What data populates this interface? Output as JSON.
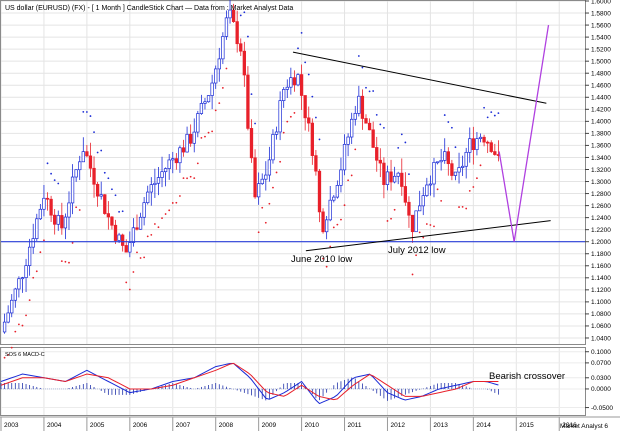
{
  "chart_data": [
    {
      "type": "candlestick",
      "title": "US dollar (EURUSD) (FX) -  [ 1 Month ] CandleStick Chart — Data from : Market Analyst Data",
      "watermark": "Market Analyst 6",
      "x_tick_labels": [
        "2003",
        "2004",
        "2005",
        "2006",
        "2007",
        "2008",
        "2009",
        "2010",
        "2011",
        "2012",
        "2013",
        "2014",
        "2015",
        "2016"
      ],
      "y_tick_labels": [
        "1.6000",
        "1.5800",
        "1.5600",
        "1.5400",
        "1.5200",
        "1.5000",
        "1.4800",
        "1.4600",
        "1.4400",
        "1.4200",
        "1.4000",
        "1.3800",
        "1.3600",
        "1.3400",
        "1.3200",
        "1.3000",
        "1.2800",
        "1.2600",
        "1.2400",
        "1.2200",
        "1.2000",
        "1.1800",
        "1.1600",
        "1.1400",
        "1.1200",
        "1.1000",
        "1.0800",
        "1.0600",
        "1.0400"
      ],
      "ylim": [
        1.03,
        1.6
      ],
      "xlim": [
        2003.0,
        2016.6
      ],
      "grid": true,
      "colors": {
        "up": "#1a2bd6",
        "down": "#e8202a",
        "sar": "#e8202a",
        "sar_up": "#1a2bd6",
        "support": "#2b3fd9",
        "trendline": "#000000",
        "projection": "#b040e0"
      },
      "series": [
        {
          "name": "EURUSD monthly close",
          "x": [
            2003.0,
            2003.5,
            2004.0,
            2004.4,
            2004.9,
            2005.5,
            2005.9,
            2006.4,
            2006.9,
            2007.4,
            2007.9,
            2008.3,
            2008.6,
            2008.9,
            2009.2,
            2009.6,
            2009.9,
            2010.3,
            2010.45,
            2010.9,
            2011.3,
            2011.5,
            2011.9,
            2012.3,
            2012.55,
            2012.9,
            2013.3,
            2013.6,
            2013.9,
            2014.2,
            2014.45,
            2014.6
          ],
          "values": [
            1.05,
            1.15,
            1.28,
            1.22,
            1.36,
            1.24,
            1.18,
            1.28,
            1.33,
            1.37,
            1.46,
            1.58,
            1.52,
            1.27,
            1.32,
            1.46,
            1.48,
            1.34,
            1.22,
            1.32,
            1.44,
            1.4,
            1.3,
            1.32,
            1.22,
            1.3,
            1.34,
            1.3,
            1.36,
            1.38,
            1.36,
            1.33
          ]
        }
      ],
      "projection": {
        "x": [
          2014.6,
          2014.95,
          2015.75
        ],
        "values": [
          1.35,
          1.2,
          1.56
        ]
      },
      "support_line": 1.2,
      "trendlines": [
        {
          "x": [
            2009.8,
            2015.7
          ],
          "values": [
            1.515,
            1.43
          ]
        },
        {
          "x": [
            2010.1,
            2015.8
          ],
          "values": [
            1.185,
            1.235
          ]
        }
      ],
      "annotations": {
        "june_2010": "June 2010 low",
        "july_2012": "July 2012 low"
      }
    },
    {
      "type": "line",
      "title": "SOS 6 MACD-C",
      "y_tick_labels": [
        "0.1000",
        "0.0700",
        "0.0300",
        "0.0000",
        "-0.0500"
      ],
      "ylim": [
        -0.07,
        0.11
      ],
      "annotation": "Bearish crossover",
      "series": [
        {
          "name": "MACD",
          "x": [
            2003.0,
            2003.5,
            2004.0,
            2004.5,
            2005.0,
            2005.5,
            2006.0,
            2006.5,
            2007.0,
            2007.5,
            2008.0,
            2008.4,
            2008.8,
            2009.2,
            2009.6,
            2010.0,
            2010.4,
            2010.8,
            2011.2,
            2011.6,
            2012.0,
            2012.4,
            2012.8,
            2013.2,
            2013.6,
            2014.0,
            2014.3,
            2014.6
          ],
          "values": [
            0.02,
            0.04,
            0.03,
            0.02,
            0.05,
            0.02,
            -0.01,
            0.0,
            0.02,
            0.03,
            0.06,
            0.07,
            0.03,
            -0.03,
            -0.01,
            0.02,
            -0.04,
            -0.02,
            0.03,
            0.04,
            -0.01,
            -0.03,
            -0.02,
            0.0,
            0.01,
            0.02,
            0.02,
            0.01
          ]
        },
        {
          "name": "Signal",
          "x": [
            2003.0,
            2003.5,
            2004.0,
            2004.5,
            2005.0,
            2005.5,
            2006.0,
            2006.5,
            2007.0,
            2007.5,
            2008.0,
            2008.4,
            2008.8,
            2009.2,
            2009.6,
            2010.0,
            2010.4,
            2010.8,
            2011.2,
            2011.6,
            2012.0,
            2012.4,
            2012.8,
            2013.2,
            2013.6,
            2014.0,
            2014.3,
            2014.6
          ],
          "values": [
            0.01,
            0.03,
            0.03,
            0.02,
            0.04,
            0.03,
            0.0,
            0.0,
            0.01,
            0.03,
            0.05,
            0.07,
            0.04,
            -0.01,
            -0.02,
            0.01,
            -0.02,
            -0.03,
            0.01,
            0.04,
            0.01,
            -0.02,
            -0.02,
            -0.01,
            0.0,
            0.02,
            0.02,
            0.02
          ]
        }
      ]
    }
  ]
}
